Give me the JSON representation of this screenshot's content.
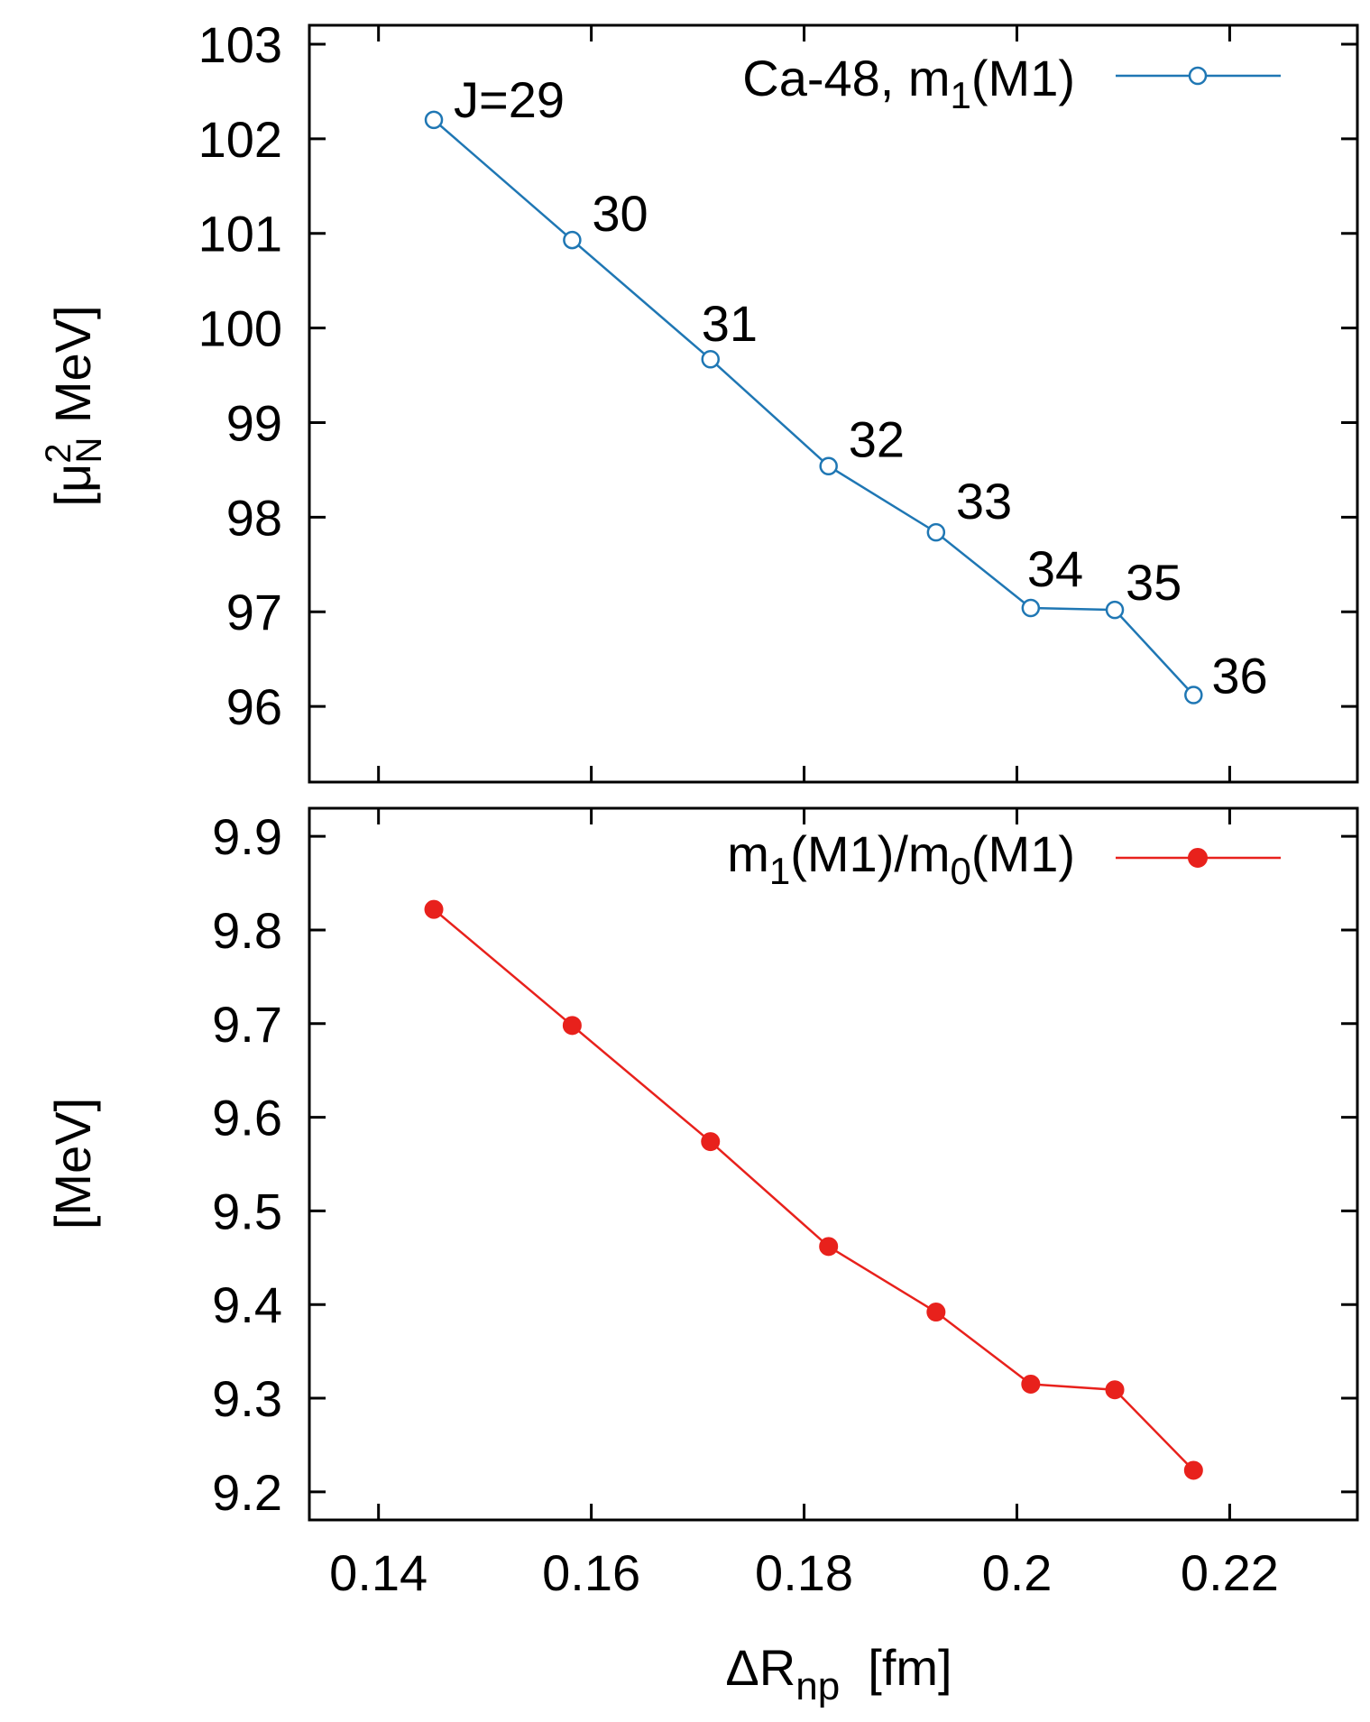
{
  "chart_data": [
    {
      "type": "line",
      "panel": "top",
      "ylabel": "[μ²N MeV]",
      "ylabel_parts": {
        "open": "[μ",
        "sup": "2",
        "sub": "N",
        "rest": " MeV]"
      },
      "yticks": [
        "96",
        "97",
        "98",
        "99",
        "100",
        "101",
        "102",
        "103"
      ],
      "ylim": [
        95.2,
        103.2
      ],
      "xlim": [
        0.1335,
        0.232
      ],
      "grid": false,
      "legend_position": "top-right",
      "series": [
        {
          "name": "Ca-48, m1(M1)",
          "legend": {
            "main": "Ca-48, m",
            "sub": "1",
            "rest": "(M1)"
          },
          "color": "#1f77b4",
          "marker": "open-circle",
          "x": [
            0.1452,
            0.1582,
            0.1712,
            0.1823,
            0.1924,
            0.2013,
            0.2092,
            0.2166
          ],
          "y": [
            102.2,
            100.93,
            99.67,
            98.54,
            97.84,
            97.04,
            97.02,
            96.12
          ]
        }
      ],
      "annotations": [
        "J=29",
        "30",
        "31",
        "32",
        "33",
        "34",
        "35",
        "36"
      ]
    },
    {
      "type": "line",
      "panel": "bottom",
      "ylabel": "[MeV]",
      "xlabel": "ΔRnp [fm]",
      "xlabel_parts": {
        "main": "ΔR",
        "sub": "np",
        "rest": "  [fm]"
      },
      "xticks": [
        "0.14",
        "0.16",
        "0.18",
        "0.2",
        "0.22"
      ],
      "yticks": [
        "9.2",
        "9.3",
        "9.4",
        "9.5",
        "9.6",
        "9.7",
        "9.8",
        "9.9"
      ],
      "ylim": [
        9.17,
        9.93
      ],
      "xlim": [
        0.1335,
        0.232
      ],
      "grid": false,
      "legend_position": "top-right",
      "series": [
        {
          "name": "m1(M1)/m0(M1)",
          "legend": {
            "a": "m",
            "a_sub": "1",
            "b": "(M1)/m",
            "b_sub": "0",
            "c": "(M1)"
          },
          "color": "#e8211c",
          "marker": "filled-circle",
          "x": [
            0.1452,
            0.1582,
            0.1712,
            0.1823,
            0.1924,
            0.2013,
            0.2092,
            0.2166
          ],
          "y": [
            9.822,
            9.698,
            9.574,
            9.462,
            9.392,
            9.315,
            9.309,
            9.223
          ]
        }
      ]
    }
  ]
}
